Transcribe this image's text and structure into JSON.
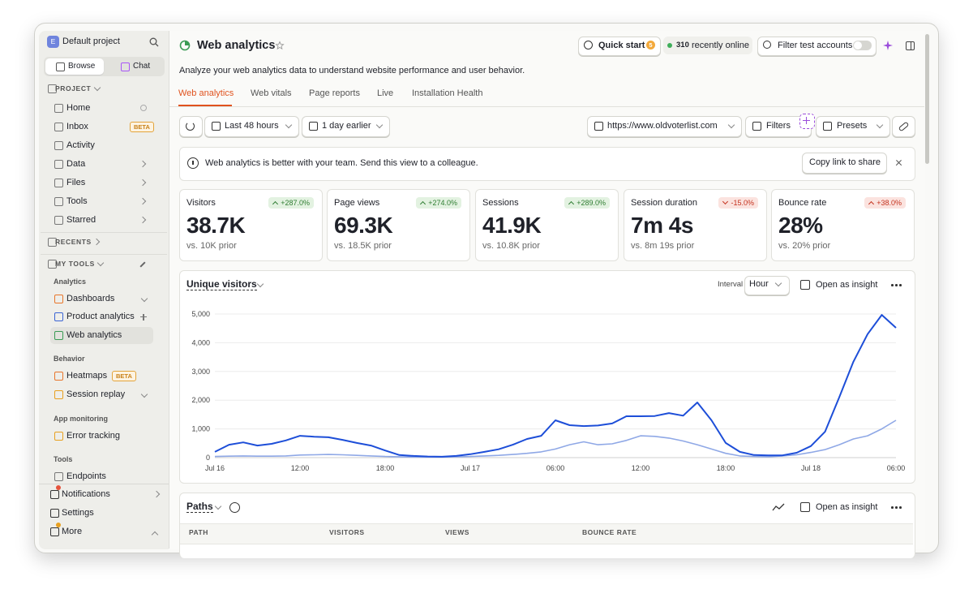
{
  "sidebar": {
    "avatar": "E",
    "project": "Default project",
    "tabs": [
      "Browse",
      "Chat"
    ],
    "project_section": "PROJECT",
    "items": [
      {
        "label": "Home"
      },
      {
        "label": "Inbox",
        "badge": "BETA"
      },
      {
        "label": "Activity"
      },
      {
        "label": "Data"
      },
      {
        "label": "Files"
      },
      {
        "label": "Tools"
      },
      {
        "label": "Starred"
      }
    ],
    "recents": "RECENTS",
    "my_tools": "MY TOOLS",
    "groups": [
      {
        "title": "Analytics",
        "items": [
          {
            "label": "Dashboards"
          },
          {
            "label": "Product analytics"
          },
          {
            "label": "Web analytics"
          }
        ]
      },
      {
        "title": "Behavior",
        "items": [
          {
            "label": "Heatmaps",
            "badge": "BETA"
          },
          {
            "label": "Session replay"
          }
        ]
      },
      {
        "title": "App monitoring",
        "items": [
          {
            "label": "Error tracking"
          }
        ]
      },
      {
        "title": "Tools",
        "items": [
          {
            "label": "Endpoints"
          }
        ]
      }
    ],
    "bottom": [
      {
        "label": "Notifications"
      },
      {
        "label": "Settings"
      },
      {
        "label": "More"
      }
    ]
  },
  "header": {
    "title": "Web analytics",
    "quick_start": "Quick start",
    "quick_start_badge": "5",
    "online_count": "310",
    "online_text": "recently online",
    "filter_test": "Filter test accounts",
    "description": "Analyze your web analytics data to understand website performance and user behavior."
  },
  "tabs": [
    "Web analytics",
    "Web vitals",
    "Page reports",
    "Live",
    "Installation Health"
  ],
  "filters": {
    "range": "Last 48 hours",
    "compare": "1 day earlier",
    "url": "https://www.oldvoterlist.com",
    "filters": "Filters",
    "presets": "Presets"
  },
  "banner": {
    "text": "Web analytics is better with your team. Send this view to a colleague.",
    "button": "Copy link to share"
  },
  "stats": [
    {
      "label": "Visitors",
      "change": "+287.0%",
      "sentiment": "positive",
      "value": "38.7K",
      "prior": "vs. 10K prior"
    },
    {
      "label": "Page views",
      "change": "+274.0%",
      "sentiment": "positive",
      "value": "69.3K",
      "prior": "vs. 18.5K prior"
    },
    {
      "label": "Sessions",
      "change": "+289.0%",
      "sentiment": "positive",
      "value": "41.9K",
      "prior": "vs. 10.8K prior"
    },
    {
      "label": "Session duration",
      "change": "-15.0%",
      "sentiment": "negative",
      "value": "7m 4s",
      "prior": "vs. 8m 19s prior"
    },
    {
      "label": "Bounce rate",
      "change": "+38.0%",
      "sentiment": "negative",
      "value": "28%",
      "prior": "vs. 20% prior"
    }
  ],
  "chart_card": {
    "interval_label": "Interval",
    "interval": "Hour",
    "open": "Open as insight"
  },
  "chart_data": {
    "type": "line",
    "title": "Unique visitors",
    "categories": [
      "Jul 16",
      null,
      null,
      null,
      null,
      null,
      "12:00",
      null,
      null,
      null,
      null,
      null,
      "18:00",
      null,
      null,
      null,
      null,
      null,
      "Jul 17",
      null,
      null,
      null,
      null,
      null,
      "06:00",
      null,
      null,
      null,
      null,
      null,
      "12:00",
      null,
      null,
      null,
      null,
      null,
      "18:00",
      null,
      null,
      null,
      null,
      null,
      "Jul 18",
      null,
      null,
      null,
      null,
      null,
      "06:00"
    ],
    "series": [
      {
        "color": "#1d4ed8",
        "values": [
          200,
          450,
          530,
          420,
          480,
          600,
          760,
          730,
          710,
          620,
          510,
          420,
          250,
          90,
          60,
          40,
          30,
          60,
          120,
          200,
          290,
          450,
          650,
          760,
          1300,
          1130,
          1100,
          1120,
          1190,
          1440,
          1440,
          1450,
          1550,
          1460,
          1920,
          1300,
          510,
          200,
          90,
          80,
          80,
          170,
          400,
          900,
          2100,
          3340,
          4300,
          4970,
          4520
        ]
      },
      {
        "color": "#8fa8e6",
        "values": [
          40,
          50,
          60,
          50,
          50,
          60,
          90,
          100,
          110,
          100,
          80,
          60,
          40,
          30,
          20,
          20,
          20,
          30,
          40,
          60,
          80,
          110,
          150,
          200,
          300,
          450,
          550,
          450,
          480,
          600,
          760,
          740,
          680,
          580,
          450,
          300,
          150,
          60,
          40,
          30,
          60,
          100,
          180,
          280,
          450,
          650,
          760,
          1000,
          1300
        ]
      }
    ],
    "ylim": [
      0,
      5000
    ],
    "yticks": [
      0,
      {
        "value": 1000,
        "label": "1,000"
      },
      {
        "value": 2000,
        "label": "2,000"
      },
      {
        "value": 3000,
        "label": "3,000"
      },
      {
        "value": 4000,
        "label": "4,000"
      },
      {
        "value": 5000,
        "label": "5,000"
      }
    ],
    "grid": true
  },
  "paths": {
    "title": "Paths",
    "open": "Open as insight",
    "columns": [
      "PATH",
      "VISITORS",
      "VIEWS",
      "BOUNCE RATE"
    ]
  }
}
